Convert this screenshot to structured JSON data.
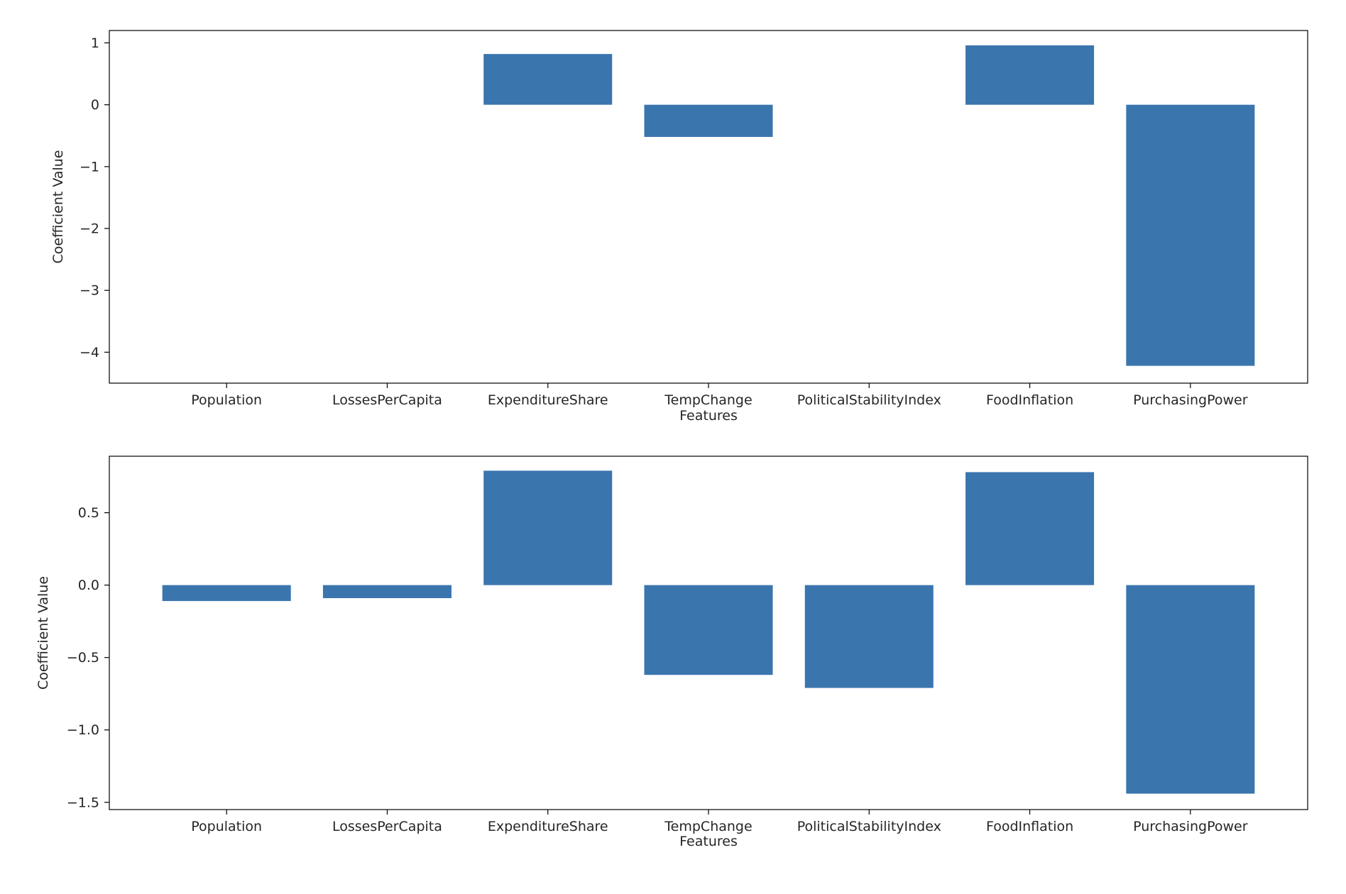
{
  "chart_data": [
    {
      "type": "bar",
      "categories": [
        "Population",
        "LossesPerCapita",
        "ExpenditureShare",
        "TempChange",
        "PoliticalStabilityIndex",
        "FoodInflation",
        "PurchasingPower"
      ],
      "values": [
        0.0,
        0.0,
        0.82,
        -0.52,
        0.0,
        0.96,
        -4.22
      ],
      "title": "",
      "xlabel": "Features",
      "ylabel": "Coefficient Value",
      "ylim": [
        -4.5,
        1.2
      ],
      "yticks": [
        1,
        0,
        -1,
        -2,
        -3,
        -4
      ],
      "ytick_labels": [
        "1",
        "0",
        "−1",
        "−2",
        "−3",
        "−4"
      ],
      "color": "#3a75ae",
      "grid": false,
      "legend": "none"
    },
    {
      "type": "bar",
      "categories": [
        "Population",
        "LossesPerCapita",
        "ExpenditureShare",
        "TempChange",
        "PoliticalStabilityIndex",
        "FoodInflation",
        "PurchasingPower"
      ],
      "values": [
        -0.11,
        -0.09,
        0.79,
        -0.62,
        -0.71,
        0.78,
        -1.44
      ],
      "title": "",
      "xlabel": "Features",
      "ylabel": "Coefficient Value",
      "ylim": [
        -1.55,
        0.89
      ],
      "yticks": [
        0.5,
        0.0,
        -0.5,
        -1.0,
        -1.5
      ],
      "ytick_labels": [
        "0.5",
        "0.0",
        "−0.5",
        "−1.0",
        "−1.5"
      ],
      "color": "#3a75ae",
      "grid": false,
      "legend": "none"
    }
  ]
}
